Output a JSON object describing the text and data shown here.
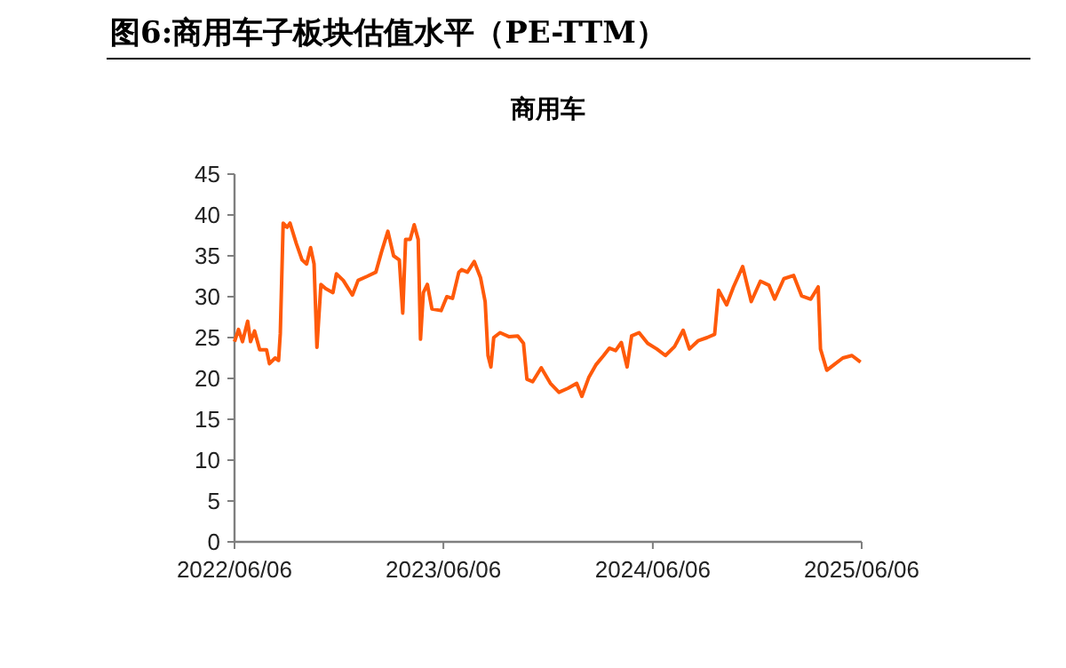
{
  "chart_data": {
    "type": "line",
    "title": "图6:商用车子板块估值水平（PE-TTM）",
    "subtitle": "商用车",
    "x": [
      "2022-06-06",
      "2022-06-13",
      "2022-06-20",
      "2022-06-29",
      "2022-07-04",
      "2022-07-11",
      "2022-07-20",
      "2022-08-01",
      "2022-08-06",
      "2022-08-16",
      "2022-08-22",
      "2022-08-25",
      "2022-08-30",
      "2022-09-06",
      "2022-09-11",
      "2022-09-22",
      "2022-10-02",
      "2022-10-10",
      "2022-10-17",
      "2022-10-23",
      "2022-10-28",
      "2022-11-04",
      "2022-11-12",
      "2022-11-25",
      "2022-12-01",
      "2022-12-13",
      "2022-12-29",
      "2023-01-08",
      "2023-01-24",
      "2023-02-08",
      "2023-02-18",
      "2023-03-01",
      "2023-03-11",
      "2023-03-21",
      "2023-03-27",
      "2023-04-01",
      "2023-04-09",
      "2023-04-16",
      "2023-04-23",
      "2023-04-27",
      "2023-05-02",
      "2023-05-09",
      "2023-05-17",
      "2023-06-02",
      "2023-06-12",
      "2023-06-22",
      "2023-07-03",
      "2023-07-08",
      "2023-07-18",
      "2023-07-30",
      "2023-08-10",
      "2023-08-18",
      "2023-08-23",
      "2023-08-28",
      "2023-09-02",
      "2023-09-13",
      "2023-09-29",
      "2023-10-14",
      "2023-10-24",
      "2023-10-30",
      "2023-11-09",
      "2023-11-24",
      "2023-12-10",
      "2023-12-25",
      "2024-01-10",
      "2024-01-25",
      "2024-02-03",
      "2024-02-15",
      "2024-02-28",
      "2024-03-12",
      "2024-03-22",
      "2024-04-02",
      "2024-04-12",
      "2024-04-22",
      "2024-04-30",
      "2024-05-13",
      "2024-05-28",
      "2024-06-13",
      "2024-06-28",
      "2024-07-14",
      "2024-07-29",
      "2024-08-09",
      "2024-08-24",
      "2024-09-09",
      "2024-09-22",
      "2024-09-29",
      "2024-10-13",
      "2024-10-25",
      "2024-11-10",
      "2024-11-25",
      "2024-12-11",
      "2024-12-26",
      "2025-01-05",
      "2025-01-21",
      "2025-02-07",
      "2025-02-21",
      "2025-03-09",
      "2025-03-22",
      "2025-03-26",
      "2025-04-06",
      "2025-04-19",
      "2025-05-04",
      "2025-05-20",
      "2025-06-04"
    ],
    "values": [
      24.5,
      26.0,
      24.5,
      27.0,
      24.5,
      25.8,
      23.5,
      23.5,
      21.8,
      22.5,
      22.2,
      25.5,
      39.0,
      38.5,
      39.0,
      36.5,
      34.5,
      34.0,
      36.0,
      34.0,
      23.8,
      31.5,
      31.0,
      30.5,
      32.8,
      32.0,
      30.2,
      32.0,
      32.5,
      33.0,
      35.5,
      38.0,
      35.0,
      34.5,
      28.0,
      37.0,
      37.0,
      38.8,
      37.0,
      24.8,
      30.5,
      31.5,
      28.5,
      28.3,
      30.0,
      29.8,
      33.0,
      33.3,
      33.0,
      34.3,
      32.3,
      29.4,
      22.8,
      21.4,
      25.0,
      25.6,
      25.1,
      25.2,
      24.3,
      19.9,
      19.6,
      21.3,
      19.4,
      18.3,
      18.8,
      19.4,
      17.8,
      20.1,
      21.7,
      22.8,
      23.7,
      23.4,
      24.4,
      21.4,
      25.2,
      25.6,
      24.3,
      23.6,
      22.8,
      23.9,
      25.9,
      23.6,
      24.6,
      25.0,
      25.4,
      30.8,
      29.0,
      31.2,
      33.7,
      29.4,
      31.9,
      31.4,
      29.7,
      32.2,
      32.6,
      30.1,
      29.7,
      31.2,
      23.6,
      21.0,
      21.7,
      22.5,
      22.8,
      22.0
    ],
    "color": "#ff5a0a",
    "xlim": [
      "2022-06-06",
      "2025-06-06"
    ],
    "xticks": [
      {
        "value": "2022-06-06",
        "label": "2022/06/06"
      },
      {
        "value": "2023-06-06",
        "label": "2023/06/06"
      },
      {
        "value": "2024-06-06",
        "label": "2024/06/06"
      },
      {
        "value": "2025-06-06",
        "label": "2025/06/06"
      }
    ],
    "ylim": [
      0,
      45
    ],
    "yticks": [
      0,
      5,
      10,
      15,
      20,
      25,
      30,
      35,
      40,
      45
    ]
  }
}
